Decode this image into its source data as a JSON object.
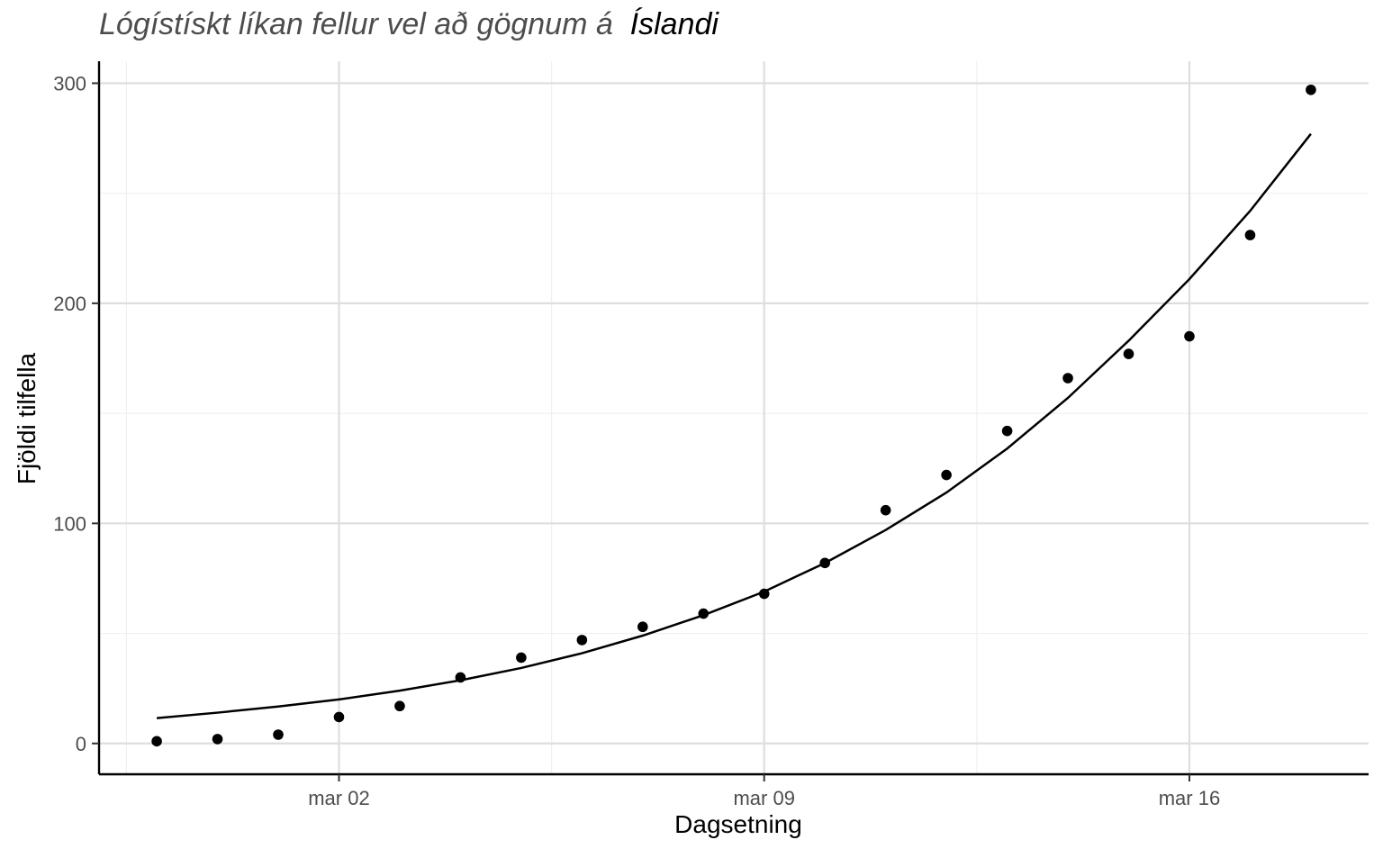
{
  "title_main": "Lógístískt líkan fellur vel að gögnum á",
  "title_country": "Íslandi",
  "chart_data": {
    "type": "scatter",
    "xlabel": "Dagsetning",
    "ylabel": "Fjöldi tilfella",
    "x_tick_labels": [
      "mar 02",
      "mar 09",
      "mar 16"
    ],
    "y_tick_labels": [
      "0",
      "100",
      "200",
      "300"
    ],
    "ylim": [
      -14,
      310
    ],
    "grid": true,
    "series": [
      {
        "kind": "points",
        "color": "#000000",
        "points": [
          {
            "date": "2020-02-28",
            "y": 1
          },
          {
            "date": "2020-02-29",
            "y": 2
          },
          {
            "date": "2020-03-01",
            "y": 4
          },
          {
            "date": "2020-03-02",
            "y": 12
          },
          {
            "date": "2020-03-03",
            "y": 17
          },
          {
            "date": "2020-03-04",
            "y": 30
          },
          {
            "date": "2020-03-05",
            "y": 39
          },
          {
            "date": "2020-03-06",
            "y": 47
          },
          {
            "date": "2020-03-07",
            "y": 53
          },
          {
            "date": "2020-03-08",
            "y": 59
          },
          {
            "date": "2020-03-09",
            "y": 68
          },
          {
            "date": "2020-03-10",
            "y": 82
          },
          {
            "date": "2020-03-11",
            "y": 106
          },
          {
            "date": "2020-03-12",
            "y": 122
          },
          {
            "date": "2020-03-13",
            "y": 142
          },
          {
            "date": "2020-03-14",
            "y": 166
          },
          {
            "date": "2020-03-15",
            "y": 177
          },
          {
            "date": "2020-03-16",
            "y": 185
          },
          {
            "date": "2020-03-17",
            "y": 231
          },
          {
            "date": "2020-03-18",
            "y": 297
          }
        ]
      },
      {
        "kind": "fitted-line",
        "color": "#000000",
        "points": [
          {
            "date": "2020-02-28",
            "y": 11.5
          },
          {
            "date": "2020-02-29",
            "y": 14
          },
          {
            "date": "2020-03-01",
            "y": 16.8
          },
          {
            "date": "2020-03-02",
            "y": 20
          },
          {
            "date": "2020-03-03",
            "y": 24
          },
          {
            "date": "2020-03-04",
            "y": 28.7
          },
          {
            "date": "2020-03-05",
            "y": 34.3
          },
          {
            "date": "2020-03-06",
            "y": 41
          },
          {
            "date": "2020-03-07",
            "y": 49
          },
          {
            "date": "2020-03-08",
            "y": 58.3
          },
          {
            "date": "2020-03-09",
            "y": 69
          },
          {
            "date": "2020-03-10",
            "y": 82
          },
          {
            "date": "2020-03-11",
            "y": 97
          },
          {
            "date": "2020-03-12",
            "y": 114
          },
          {
            "date": "2020-03-13",
            "y": 134
          },
          {
            "date": "2020-03-14",
            "y": 157
          },
          {
            "date": "2020-03-15",
            "y": 183
          },
          {
            "date": "2020-03-16",
            "y": 211
          },
          {
            "date": "2020-03-17",
            "y": 242
          },
          {
            "date": "2020-03-18",
            "y": 277
          }
        ]
      }
    ]
  }
}
